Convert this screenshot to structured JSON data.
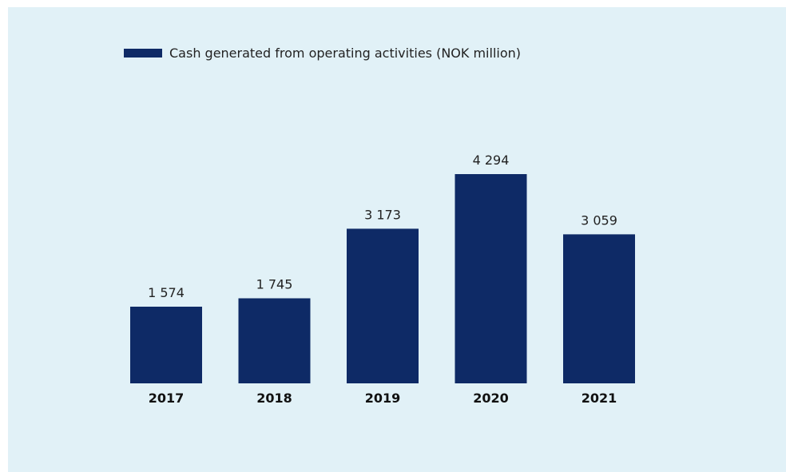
{
  "colors": {
    "background": "#e1f1f7",
    "bar": "#0e2a66"
  },
  "legend": {
    "label": "Cash generated from operating activities (NOK million)"
  },
  "chart_data": {
    "type": "bar",
    "categories": [
      "2017",
      "2018",
      "2019",
      "2020",
      "2021"
    ],
    "series": [
      {
        "name": "Cash generated from operating activities (NOK million)",
        "values": [
          1574,
          1745,
          3173,
          4294,
          3059
        ],
        "value_labels": [
          "1 574",
          "1 745",
          "3 173",
          "4 294",
          "3 059"
        ]
      }
    ],
    "title": "",
    "xlabel": "",
    "ylabel": "",
    "ylim": [
      0,
      4294
    ],
    "grid": false,
    "legend_position": "top-left"
  }
}
